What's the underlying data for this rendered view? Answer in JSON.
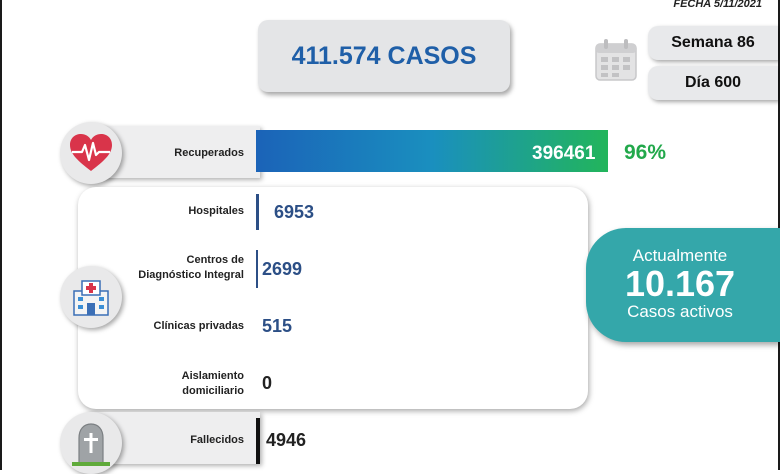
{
  "date": "FECHA 5/11/2021",
  "total_cases": "411.574 CASOS",
  "week": "Semana 86",
  "day": "Día 600",
  "recovered": {
    "label": "Recuperados",
    "value": "396461",
    "percent": "96%"
  },
  "hospitals": {
    "label": "Hospitales",
    "value": "6953"
  },
  "cdi": {
    "label_line1": "Centros de",
    "label_line2": "Diagnóstico Integral",
    "value": "2699"
  },
  "clinics": {
    "label": "Clínicas privadas",
    "value": "515"
  },
  "home": {
    "label_line1": "Aislamiento",
    "label_line2": "domiciliario",
    "value": "0"
  },
  "deaths": {
    "label": "Fallecidos",
    "value": "4946"
  },
  "active": {
    "line1": "Actualmente",
    "value": "10.167",
    "line3": "Casos activos"
  },
  "icons": [
    "heart-pulse-icon",
    "hospital-icon",
    "gravestone-icon",
    "calendar-icon"
  ],
  "colors": {
    "blue": "#1f5fa8",
    "green": "#22a84b",
    "teal": "#34a7aa",
    "navy": "#2c4f86"
  }
}
